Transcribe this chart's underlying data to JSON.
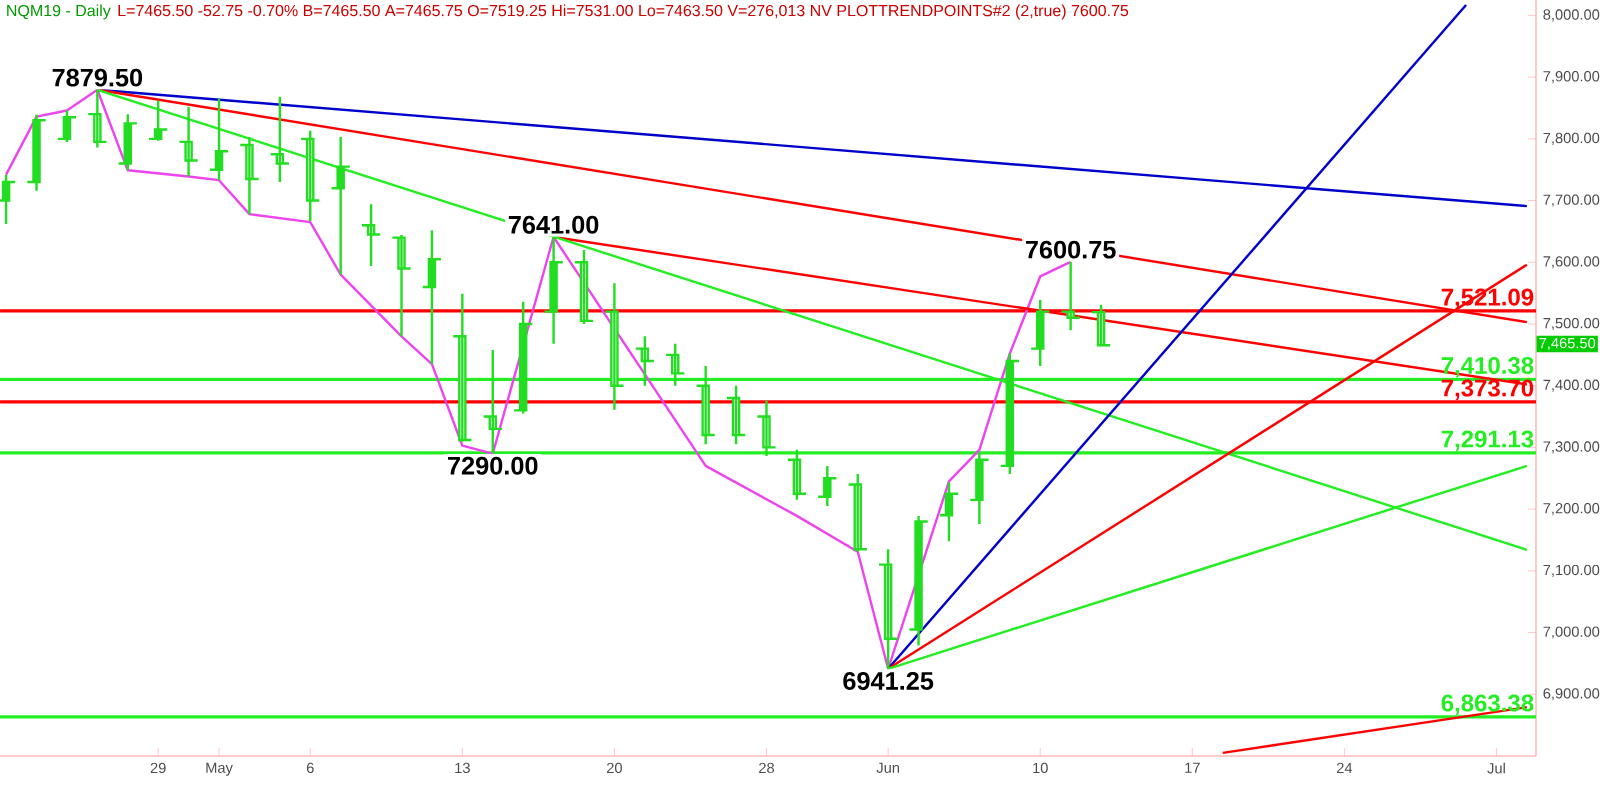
{
  "chart_data": {
    "type": "candlestick",
    "title": "NQM19 - Daily",
    "color": "#22dd22",
    "categories": [
      null,
      null,
      null,
      null,
      null,
      "29",
      null,
      "May",
      null,
      null,
      "6",
      null,
      null,
      null,
      null,
      "13",
      null,
      null,
      null,
      null,
      "20",
      null,
      null,
      null,
      null,
      "28",
      null,
      null,
      null,
      "Jun",
      null,
      null,
      null,
      null,
      "10",
      null,
      null,
      null,
      null,
      "17",
      null,
      null,
      null,
      null,
      "24",
      null,
      null,
      null,
      null,
      "Jul",
      null
    ],
    "ohlc": [
      [
        7700,
        7742,
        7662,
        7730
      ],
      [
        7730,
        7839,
        7716,
        7830
      ],
      [
        7800,
        7846,
        7795,
        7835
      ],
      [
        7840,
        7879.5,
        7786,
        7795
      ],
      [
        7760,
        7840,
        7749,
        7825
      ],
      [
        7800,
        7862,
        7797,
        7815
      ],
      [
        7795,
        7852,
        7739,
        7765
      ],
      [
        7750,
        7865,
        7733,
        7780
      ],
      [
        7790,
        7803,
        7678,
        7735
      ],
      [
        7775,
        7868,
        7730,
        7760
      ],
      [
        7800,
        7813,
        7667,
        7700
      ],
      [
        7720,
        7803,
        7580,
        7755
      ],
      [
        7660,
        7694,
        7594,
        7645
      ],
      [
        7640,
        7644,
        7480,
        7590
      ],
      [
        7560,
        7652,
        7435,
        7605
      ],
      [
        7480,
        7549,
        7309,
        7312
      ],
      [
        7350,
        7458,
        7290,
        7330
      ],
      [
        7360,
        7536,
        7355,
        7500
      ],
      [
        7520,
        7641,
        7468,
        7600
      ],
      [
        7600,
        7620,
        7500,
        7505
      ],
      [
        7520,
        7566,
        7361,
        7400
      ],
      [
        7460,
        7480,
        7400,
        7440
      ],
      [
        7450,
        7468,
        7400,
        7420
      ],
      [
        7400,
        7432,
        7305,
        7320
      ],
      [
        7380,
        7400,
        7305,
        7320
      ],
      [
        7350,
        7376,
        7286,
        7300
      ],
      [
        7280,
        7296,
        7215,
        7225
      ],
      [
        7220,
        7270,
        7205,
        7250
      ],
      [
        7240,
        7257,
        7131,
        7135
      ],
      [
        7110,
        7135,
        6941.25,
        6990
      ],
      [
        7005,
        7189,
        6979,
        7180
      ],
      [
        7190,
        7243,
        7148,
        7225
      ],
      [
        7215,
        7290,
        7176,
        7280
      ],
      [
        7270,
        7452,
        7257,
        7440
      ],
      [
        7460,
        7539,
        7432,
        7520
      ],
      [
        7520,
        7600.75,
        7490,
        7510
      ],
      [
        7519.25,
        7531,
        7463.5,
        7465.5
      ],
      null,
      null,
      null,
      null,
      null,
      null,
      null,
      null,
      null,
      null,
      null,
      null,
      null,
      null
    ],
    "series": [
      {
        "type": "line",
        "color": "#ee44ee",
        "values": [
          7742,
          7836,
          7846,
          7879.5,
          7749,
          null,
          7739,
          7733,
          7678,
          null,
          7665,
          7580,
          null,
          7480,
          7435,
          7303,
          7290,
          null,
          7641,
          null,
          null,
          null,
          null,
          7270,
          null,
          null,
          7189,
          null,
          7131,
          6941.25,
          null,
          7245,
          7296,
          7452,
          7577,
          7600.75,
          null,
          null,
          null,
          null,
          null,
          null,
          null,
          null,
          null,
          null,
          null,
          null,
          null,
          null,
          null
        ]
      },
      {
        "type": "line",
        "color": "#0000cc",
        "values": [
          null,
          null,
          null,
          7879.5,
          null,
          null,
          null,
          null,
          null,
          null,
          null,
          null,
          null,
          null,
          null,
          null,
          null,
          null,
          null,
          null,
          null,
          null,
          null,
          null,
          null,
          null,
          null,
          null,
          null,
          null,
          null,
          null,
          null,
          null,
          null,
          null,
          null,
          null,
          null,
          null,
          null,
          null,
          null,
          null,
          null,
          null,
          null,
          null,
          null,
          null,
          7691
        ]
      },
      {
        "type": "line",
        "color": "#ff0000",
        "values": [
          null,
          null,
          null,
          7879.5,
          null,
          null,
          null,
          null,
          null,
          null,
          null,
          null,
          null,
          null,
          null,
          null,
          null,
          null,
          null,
          null,
          null,
          null,
          null,
          null,
          null,
          null,
          null,
          null,
          null,
          null,
          null,
          null,
          null,
          null,
          null,
          null,
          null,
          null,
          null,
          null,
          null,
          null,
          null,
          null,
          null,
          null,
          null,
          null,
          null,
          null,
          7503
        ]
      },
      {
        "type": "line",
        "color": "#ff0000",
        "values": [
          null,
          null,
          null,
          null,
          null,
          null,
          null,
          null,
          null,
          null,
          null,
          null,
          null,
          null,
          null,
          null,
          null,
          null,
          7641,
          null,
          null,
          null,
          null,
          null,
          null,
          null,
          null,
          null,
          null,
          null,
          null,
          null,
          null,
          null,
          null,
          null,
          null,
          null,
          null,
          null,
          null,
          null,
          null,
          null,
          null,
          null,
          null,
          null,
          null,
          null,
          7402
        ]
      },
      {
        "type": "line",
        "color": "#22ee22",
        "values": [
          null,
          null,
          null,
          7879.5,
          null,
          null,
          null,
          null,
          null,
          null,
          null,
          null,
          null,
          null,
          null,
          null,
          null,
          null,
          null,
          null,
          null,
          null,
          null,
          null,
          null,
          null,
          null,
          null,
          null,
          null,
          null,
          null,
          null,
          null,
          null,
          null,
          null,
          null,
          null,
          null,
          null,
          null,
          null,
          null,
          null,
          null,
          null,
          null,
          null,
          null,
          7134
        ]
      },
      {
        "type": "line",
        "color": "#0000cc",
        "values": [
          null,
          null,
          null,
          null,
          null,
          null,
          null,
          null,
          null,
          null,
          null,
          null,
          null,
          null,
          null,
          null,
          null,
          null,
          null,
          null,
          null,
          null,
          null,
          null,
          null,
          null,
          null,
          null,
          null,
          6941.25,
          null,
          null,
          null,
          null,
          null,
          null,
          null,
          null,
          null,
          null,
          null,
          null,
          null,
          null,
          null,
          null,
          null,
          null,
          8017,
          null,
          null
        ]
      },
      {
        "type": "line",
        "color": "#ff0000",
        "values": [
          null,
          null,
          null,
          null,
          null,
          null,
          null,
          null,
          null,
          null,
          null,
          null,
          null,
          null,
          null,
          null,
          null,
          null,
          null,
          null,
          null,
          null,
          null,
          null,
          null,
          null,
          null,
          null,
          null,
          6941.25,
          null,
          null,
          null,
          null,
          null,
          null,
          null,
          null,
          null,
          null,
          null,
          null,
          null,
          null,
          null,
          null,
          null,
          null,
          null,
          null,
          7596
        ]
      },
      {
        "type": "line",
        "color": "#22ee22",
        "values": [
          null,
          null,
          null,
          null,
          null,
          null,
          null,
          null,
          null,
          null,
          null,
          null,
          null,
          null,
          null,
          null,
          null,
          null,
          null,
          null,
          null,
          null,
          null,
          null,
          null,
          null,
          null,
          null,
          null,
          6941.25,
          null,
          null,
          null,
          null,
          null,
          null,
          null,
          null,
          null,
          null,
          null,
          null,
          null,
          null,
          null,
          null,
          null,
          null,
          null,
          null,
          7270
        ]
      },
      {
        "type": "line",
        "color": "#ff0000",
        "values": [
          null,
          null,
          null,
          null,
          null,
          null,
          null,
          null,
          null,
          null,
          null,
          null,
          null,
          null,
          null,
          null,
          null,
          null,
          null,
          null,
          null,
          null,
          null,
          null,
          null,
          null,
          null,
          null,
          null,
          null,
          null,
          null,
          null,
          null,
          null,
          null,
          null,
          null,
          null,
          null,
          6805,
          null,
          null,
          null,
          null,
          null,
          null,
          null,
          null,
          null,
          6879
        ]
      }
    ],
    "ref_lines": [
      {
        "axis": "y",
        "value": 7521.09,
        "label": "7,521.09",
        "color": "#ff0000"
      },
      {
        "axis": "y",
        "value": 7410.38,
        "label": "7,410.38",
        "color": "#22ee22"
      },
      {
        "axis": "y",
        "value": 7373.7,
        "label": "7,373.70",
        "color": "#ff0000"
      },
      {
        "axis": "y",
        "value": 7291.13,
        "label": "7,291.13",
        "color": "#22ee22"
      },
      {
        "axis": "y",
        "value": 6863.38,
        "label": "6,863.38",
        "color": "#22ee22"
      }
    ],
    "annotations": [
      "L=7465.50 -52.75 -0.70% B=7465.50 A=7465.75 O=7519.25 Hi=7531.00 Lo=7463.50 V=276,013 NV PLOTTRENDPOINTS#2 (2,true) 7600.75",
      {
        "text": "7879.50",
        "y": 7879.5
      },
      {
        "text": "7641.00",
        "y": 7641
      },
      {
        "text": "7290.00",
        "y": 7290
      },
      {
        "text": "6941.25",
        "y": 6941.25
      },
      {
        "text": "7600.75",
        "y": 7600.75
      },
      "7,465.50"
    ],
    "ylim": [
      6800,
      8025
    ],
    "yticks": [
      {
        "value": 6900,
        "label": "6,900.00"
      },
      {
        "value": 7000,
        "label": "7,000.00"
      },
      {
        "value": 7100,
        "label": "7,100.00"
      },
      {
        "value": 7200,
        "label": "7,200.00"
      },
      {
        "value": 7300,
        "label": "7,300.00"
      },
      {
        "value": 7400,
        "label": "7,400.00"
      },
      {
        "value": 7500,
        "label": "7,500.00"
      },
      {
        "value": 7600,
        "label": "7,600.00"
      },
      {
        "value": 7700,
        "label": "7,700.00"
      },
      {
        "value": 7800,
        "label": "7,800.00"
      },
      {
        "value": 7900,
        "label": "7,900.00"
      },
      {
        "value": 8000,
        "label": "8,000.00"
      }
    ]
  }
}
